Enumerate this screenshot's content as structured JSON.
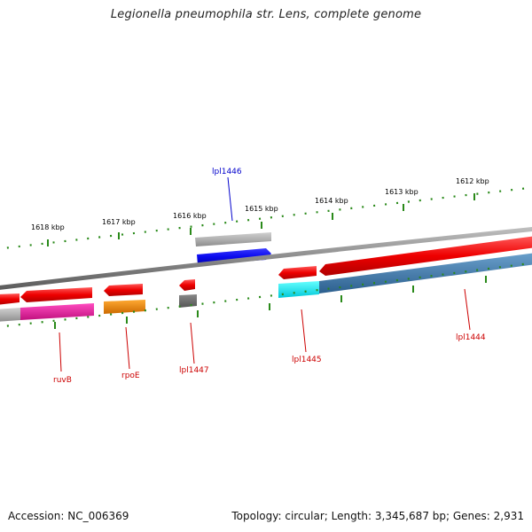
{
  "title": "Legionella pneumophila str. Lens, complete genome",
  "footer": {
    "accession": "Accession: NC_006369",
    "info": "Topology: circular; Length: 3,345,687 bp; Genes: 2,931"
  },
  "ruler_labels": [
    "1618 kbp",
    "1617 kbp",
    "1616 kbp",
    "1615 kbp",
    "1614 kbp",
    "1613 kbp",
    "1612 kbp"
  ],
  "genes": [
    {
      "name": "ruvB",
      "color": "#cc0000"
    },
    {
      "name": "rpoE",
      "color": "#cc0000"
    },
    {
      "name": "lpl1447",
      "color": "#cc0000"
    },
    {
      "name": "lpl1446",
      "color": "#0000cc"
    },
    {
      "name": "lpl1445",
      "color": "#cc0000"
    },
    {
      "name": "lpl1444",
      "color": "#cc0000"
    }
  ],
  "colors": {
    "tick": "#2a8a1a",
    "backbone": "#8a8a8a",
    "gene_red": "#ee0000",
    "gene_blue": "#0a0aee",
    "gene_grey": "#b0b0b0",
    "gene_magenta": "#e0189a",
    "gene_orange": "#ee8800",
    "gene_cyan": "#00eeee",
    "gene_steelblue": "#3a78ac",
    "gene_darkgrey": "#666666"
  }
}
